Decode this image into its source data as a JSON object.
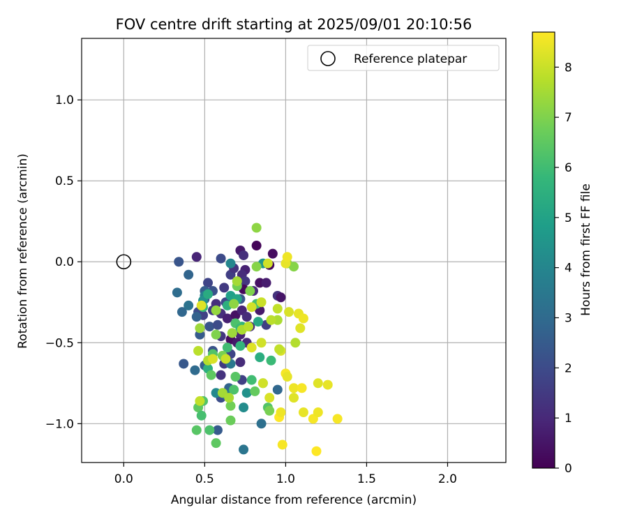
{
  "chart_data": {
    "type": "scatter",
    "title": "FOV centre drift starting at 2025/09/01 20:10:56",
    "xlabel": "Angular distance from reference (arcmin)",
    "ylabel": "Rotation from reference (arcmin)",
    "xlim": [
      -0.26,
      2.36
    ],
    "ylim": [
      -1.24,
      1.38
    ],
    "xticks": [
      0.0,
      0.5,
      1.0,
      1.5,
      2.0
    ],
    "xtick_labels": [
      "0.0",
      "0.5",
      "1.0",
      "1.5",
      "2.0"
    ],
    "yticks": [
      -1.0,
      -0.5,
      0.0,
      0.5,
      1.0
    ],
    "ytick_labels": [
      "−1.0",
      "−0.5",
      "0.0",
      "0.5",
      "1.0"
    ],
    "grid": true,
    "legend": {
      "placement": "top-right",
      "label": "Reference platepar"
    },
    "reference_point": {
      "x": 0.0,
      "y": 0.0
    },
    "colorbar": {
      "label": "Hours from first FF file",
      "range": [
        0,
        8.7
      ],
      "ticks": [
        0,
        1,
        2,
        3,
        4,
        5,
        6,
        7,
        8
      ],
      "tick_labels": [
        "0",
        "1",
        "2",
        "3",
        "4",
        "5",
        "6",
        "7",
        "8"
      ],
      "colormap": [
        "#440154",
        "#482878",
        "#3e4989",
        "#31688e",
        "#26828e",
        "#1f9e89",
        "#35b779",
        "#6ece58",
        "#b5de2b",
        "#fde725"
      ]
    },
    "points": [
      {
        "x": 0.82,
        "y": 0.1,
        "h": 0.1
      },
      {
        "x": 0.72,
        "y": 0.07,
        "h": 0.6
      },
      {
        "x": 0.74,
        "y": 0.04,
        "h": 1.2
      },
      {
        "x": 0.92,
        "y": 0.05,
        "h": 0.3
      },
      {
        "x": 0.9,
        "y": -0.02,
        "h": 0.2
      },
      {
        "x": 0.75,
        "y": -0.05,
        "h": 0.8
      },
      {
        "x": 0.73,
        "y": -0.08,
        "h": 1.1
      },
      {
        "x": 0.66,
        "y": -0.08,
        "h": 1.6
      },
      {
        "x": 0.68,
        "y": -0.04,
        "h": 1.3
      },
      {
        "x": 0.6,
        "y": 0.02,
        "h": 2.0
      },
      {
        "x": 0.45,
        "y": 0.03,
        "h": 0.9
      },
      {
        "x": 0.34,
        "y": 0.0,
        "h": 2.3
      },
      {
        "x": 0.4,
        "y": -0.08,
        "h": 2.8
      },
      {
        "x": 0.84,
        "y": -0.13,
        "h": 0.4
      },
      {
        "x": 0.88,
        "y": -0.13,
        "h": 0.7
      },
      {
        "x": 0.75,
        "y": -0.12,
        "h": 1.4
      },
      {
        "x": 0.52,
        "y": -0.13,
        "h": 1.8
      },
      {
        "x": 0.55,
        "y": -0.18,
        "h": 2.2
      },
      {
        "x": 0.62,
        "y": -0.16,
        "h": 1.5
      },
      {
        "x": 0.5,
        "y": -0.18,
        "h": 2.6
      },
      {
        "x": 0.74,
        "y": -0.17,
        "h": 0.2
      },
      {
        "x": 0.8,
        "y": -0.18,
        "h": 1.0
      },
      {
        "x": 0.95,
        "y": -0.21,
        "h": 1.3
      },
      {
        "x": 0.97,
        "y": -0.22,
        "h": 0.5
      },
      {
        "x": 0.72,
        "y": -0.23,
        "h": 2.4
      },
      {
        "x": 0.63,
        "y": -0.25,
        "h": 1.9
      },
      {
        "x": 0.57,
        "y": -0.26,
        "h": 1.2
      },
      {
        "x": 0.5,
        "y": -0.23,
        "h": 2.1
      },
      {
        "x": 0.33,
        "y": -0.19,
        "h": 3.1
      },
      {
        "x": 0.36,
        "y": -0.31,
        "h": 2.9
      },
      {
        "x": 0.4,
        "y": -0.27,
        "h": 3.3
      },
      {
        "x": 0.46,
        "y": -0.31,
        "h": 2.0
      },
      {
        "x": 0.49,
        "y": -0.33,
        "h": 1.7
      },
      {
        "x": 0.55,
        "y": -0.3,
        "h": 1.5
      },
      {
        "x": 0.6,
        "y": -0.32,
        "h": 1.2
      },
      {
        "x": 0.64,
        "y": -0.35,
        "h": 0.8
      },
      {
        "x": 0.69,
        "y": -0.33,
        "h": 0.4
      },
      {
        "x": 0.73,
        "y": -0.3,
        "h": 0.9
      },
      {
        "x": 0.76,
        "y": -0.34,
        "h": 1.1
      },
      {
        "x": 0.84,
        "y": -0.3,
        "h": 0.6
      },
      {
        "x": 0.88,
        "y": -0.39,
        "h": 1.6
      },
      {
        "x": 0.78,
        "y": -0.4,
        "h": 1.2
      },
      {
        "x": 0.72,
        "y": -0.45,
        "h": 0.9
      },
      {
        "x": 0.66,
        "y": -0.48,
        "h": 0.3
      },
      {
        "x": 0.6,
        "y": -0.46,
        "h": 1.4
      },
      {
        "x": 0.53,
        "y": -0.4,
        "h": 2.3
      },
      {
        "x": 0.47,
        "y": -0.45,
        "h": 2.5
      },
      {
        "x": 0.45,
        "y": -0.34,
        "h": 2.7
      },
      {
        "x": 0.58,
        "y": -0.39,
        "h": 2.0
      },
      {
        "x": 0.7,
        "y": -0.5,
        "h": 0.6
      },
      {
        "x": 0.76,
        "y": -0.5,
        "h": 1.0
      },
      {
        "x": 0.62,
        "y": -0.63,
        "h": 1.5
      },
      {
        "x": 0.72,
        "y": -0.62,
        "h": 1.1
      },
      {
        "x": 0.66,
        "y": -0.57,
        "h": 1.8
      },
      {
        "x": 0.55,
        "y": -0.55,
        "h": 2.2
      },
      {
        "x": 0.6,
        "y": -0.7,
        "h": 1.3
      },
      {
        "x": 0.5,
        "y": -0.64,
        "h": 2.6
      },
      {
        "x": 0.37,
        "y": -0.63,
        "h": 2.4
      },
      {
        "x": 0.44,
        "y": -0.67,
        "h": 3.0
      },
      {
        "x": 0.6,
        "y": -0.84,
        "h": 2.1
      },
      {
        "x": 0.73,
        "y": -0.73,
        "h": 1.7
      },
      {
        "x": 0.65,
        "y": -0.78,
        "h": 2.8
      },
      {
        "x": 0.95,
        "y": -0.79,
        "h": 2.9
      },
      {
        "x": 0.85,
        "y": -1.0,
        "h": 3.2
      },
      {
        "x": 0.58,
        "y": -1.04,
        "h": 2.5
      },
      {
        "x": 0.74,
        "y": -1.16,
        "h": 3.4
      },
      {
        "x": 0.66,
        "y": -0.63,
        "h": 3.5
      },
      {
        "x": 0.63,
        "y": -0.82,
        "h": 3.6
      },
      {
        "x": 0.57,
        "y": -0.81,
        "h": 4.1
      },
      {
        "x": 0.76,
        "y": -0.81,
        "h": 4.4
      },
      {
        "x": 0.74,
        "y": -0.9,
        "h": 4.2
      },
      {
        "x": 0.66,
        "y": -0.01,
        "h": 4.0
      },
      {
        "x": 0.86,
        "y": -0.01,
        "h": 4.6
      },
      {
        "x": 0.5,
        "y": -0.21,
        "h": 3.8
      },
      {
        "x": 0.49,
        "y": -0.24,
        "h": 4.3
      },
      {
        "x": 0.66,
        "y": -0.21,
        "h": 4.9
      },
      {
        "x": 0.7,
        "y": -0.23,
        "h": 5.1
      },
      {
        "x": 0.52,
        "y": -0.2,
        "h": 5.3
      },
      {
        "x": 0.49,
        "y": -0.28,
        "h": 5.8
      },
      {
        "x": 0.64,
        "y": -0.27,
        "h": 5.5
      },
      {
        "x": 0.73,
        "y": -0.4,
        "h": 5.6
      },
      {
        "x": 0.83,
        "y": -0.37,
        "h": 5.2
      },
      {
        "x": 0.82,
        "y": -0.26,
        "h": 6.1
      },
      {
        "x": 0.69,
        "y": -0.38,
        "h": 6.2
      },
      {
        "x": 0.72,
        "y": -0.41,
        "h": 5.9
      },
      {
        "x": 0.55,
        "y": -0.57,
        "h": 6.3
      },
      {
        "x": 0.64,
        "y": -0.53,
        "h": 6.0
      },
      {
        "x": 0.72,
        "y": -0.52,
        "h": 5.7
      },
      {
        "x": 0.84,
        "y": -0.59,
        "h": 5.4
      },
      {
        "x": 0.91,
        "y": -0.61,
        "h": 5.9
      },
      {
        "x": 0.52,
        "y": -0.66,
        "h": 5.5
      },
      {
        "x": 0.54,
        "y": -0.7,
        "h": 6.5
      },
      {
        "x": 0.69,
        "y": -0.71,
        "h": 6.4
      },
      {
        "x": 0.68,
        "y": -0.79,
        "h": 6.2
      },
      {
        "x": 0.79,
        "y": -0.73,
        "h": 6.0
      },
      {
        "x": 0.81,
        "y": -0.8,
        "h": 6.6
      },
      {
        "x": 0.86,
        "y": -0.75,
        "h": 6.7
      },
      {
        "x": 0.89,
        "y": -0.9,
        "h": 6.3
      },
      {
        "x": 0.9,
        "y": -0.92,
        "h": 6.9
      },
      {
        "x": 0.46,
        "y": -0.9,
        "h": 6.5
      },
      {
        "x": 0.49,
        "y": -0.86,
        "h": 6.3
      },
      {
        "x": 0.48,
        "y": -0.95,
        "h": 6.1
      },
      {
        "x": 0.45,
        "y": -1.04,
        "h": 6.4
      },
      {
        "x": 0.53,
        "y": -1.04,
        "h": 6.2
      },
      {
        "x": 0.57,
        "y": -1.12,
        "h": 6.5
      },
      {
        "x": 0.66,
        "y": -0.98,
        "h": 6.7
      },
      {
        "x": 0.66,
        "y": -0.89,
        "h": 6.8
      },
      {
        "x": 0.61,
        "y": -0.58,
        "h": 6.9
      },
      {
        "x": 0.7,
        "y": -0.15,
        "h": 6.8
      },
      {
        "x": 0.78,
        "y": -0.18,
        "h": 7.0
      },
      {
        "x": 0.82,
        "y": -0.03,
        "h": 7.1
      },
      {
        "x": 0.57,
        "y": -0.3,
        "h": 7.3
      },
      {
        "x": 0.68,
        "y": -0.26,
        "h": 7.2
      },
      {
        "x": 0.57,
        "y": -0.45,
        "h": 7.0
      },
      {
        "x": 0.67,
        "y": -0.44,
        "h": 7.4
      },
      {
        "x": 0.73,
        "y": -0.42,
        "h": 7.6
      },
      {
        "x": 0.7,
        "y": -0.12,
        "h": 7.5
      },
      {
        "x": 0.82,
        "y": 0.21,
        "h": 7.2
      },
      {
        "x": 1.01,
        "y": -0.01,
        "h": 7.3
      },
      {
        "x": 1.05,
        "y": -0.03,
        "h": 7.1
      },
      {
        "x": 0.47,
        "y": -0.41,
        "h": 7.4
      },
      {
        "x": 0.46,
        "y": -0.55,
        "h": 7.8
      },
      {
        "x": 0.52,
        "y": -0.61,
        "h": 7.7
      },
      {
        "x": 0.61,
        "y": -0.81,
        "h": 7.5
      },
      {
        "x": 0.47,
        "y": -0.86,
        "h": 7.9
      },
      {
        "x": 0.65,
        "y": -0.84,
        "h": 7.6
      },
      {
        "x": 0.77,
        "y": -0.4,
        "h": 7.8
      },
      {
        "x": 0.79,
        "y": -0.28,
        "h": 8.1
      },
      {
        "x": 0.85,
        "y": -0.25,
        "h": 8.0
      },
      {
        "x": 0.95,
        "y": -0.29,
        "h": 7.9
      },
      {
        "x": 0.95,
        "y": -0.36,
        "h": 7.6
      },
      {
        "x": 1.06,
        "y": -0.5,
        "h": 7.7
      },
      {
        "x": 0.85,
        "y": -0.5,
        "h": 8.1
      },
      {
        "x": 0.97,
        "y": -0.55,
        "h": 8.2
      },
      {
        "x": 0.96,
        "y": -0.54,
        "h": 7.9
      },
      {
        "x": 0.79,
        "y": -0.53,
        "h": 8.3
      },
      {
        "x": 0.63,
        "y": -0.6,
        "h": 8.0
      },
      {
        "x": 0.55,
        "y": -0.6,
        "h": 8.2
      },
      {
        "x": 0.48,
        "y": -0.27,
        "h": 8.3
      },
      {
        "x": 0.89,
        "y": -0.01,
        "h": 8.1
      },
      {
        "x": 1.0,
        "y": -0.01,
        "h": 8.4
      },
      {
        "x": 1.01,
        "y": 0.03,
        "h": 8.5
      },
      {
        "x": 1.02,
        "y": -0.31,
        "h": 8.2
      },
      {
        "x": 1.08,
        "y": -0.32,
        "h": 8.4
      },
      {
        "x": 1.09,
        "y": -0.41,
        "h": 8.3
      },
      {
        "x": 1.11,
        "y": -0.35,
        "h": 8.5
      },
      {
        "x": 1.0,
        "y": -0.69,
        "h": 8.6
      },
      {
        "x": 1.01,
        "y": -0.71,
        "h": 8.4
      },
      {
        "x": 1.05,
        "y": -0.78,
        "h": 8.5
      },
      {
        "x": 1.1,
        "y": -0.78,
        "h": 8.6
      },
      {
        "x": 1.05,
        "y": -0.84,
        "h": 8.3
      },
      {
        "x": 1.11,
        "y": -0.93,
        "h": 8.4
      },
      {
        "x": 1.17,
        "y": -0.97,
        "h": 8.6
      },
      {
        "x": 1.2,
        "y": -0.93,
        "h": 8.5
      },
      {
        "x": 1.2,
        "y": -0.75,
        "h": 8.3
      },
      {
        "x": 1.26,
        "y": -0.76,
        "h": 8.4
      },
      {
        "x": 1.32,
        "y": -0.97,
        "h": 8.6
      },
      {
        "x": 0.96,
        "y": -0.96,
        "h": 8.7
      },
      {
        "x": 0.97,
        "y": -0.93,
        "h": 8.5
      },
      {
        "x": 0.9,
        "y": -0.84,
        "h": 8.2
      },
      {
        "x": 0.86,
        "y": -0.75,
        "h": 8.1
      },
      {
        "x": 0.98,
        "y": -1.13,
        "h": 8.6
      },
      {
        "x": 1.19,
        "y": -1.17,
        "h": 8.7
      },
      {
        "x": 0.91,
        "y": -0.36,
        "h": 7.8
      }
    ]
  }
}
